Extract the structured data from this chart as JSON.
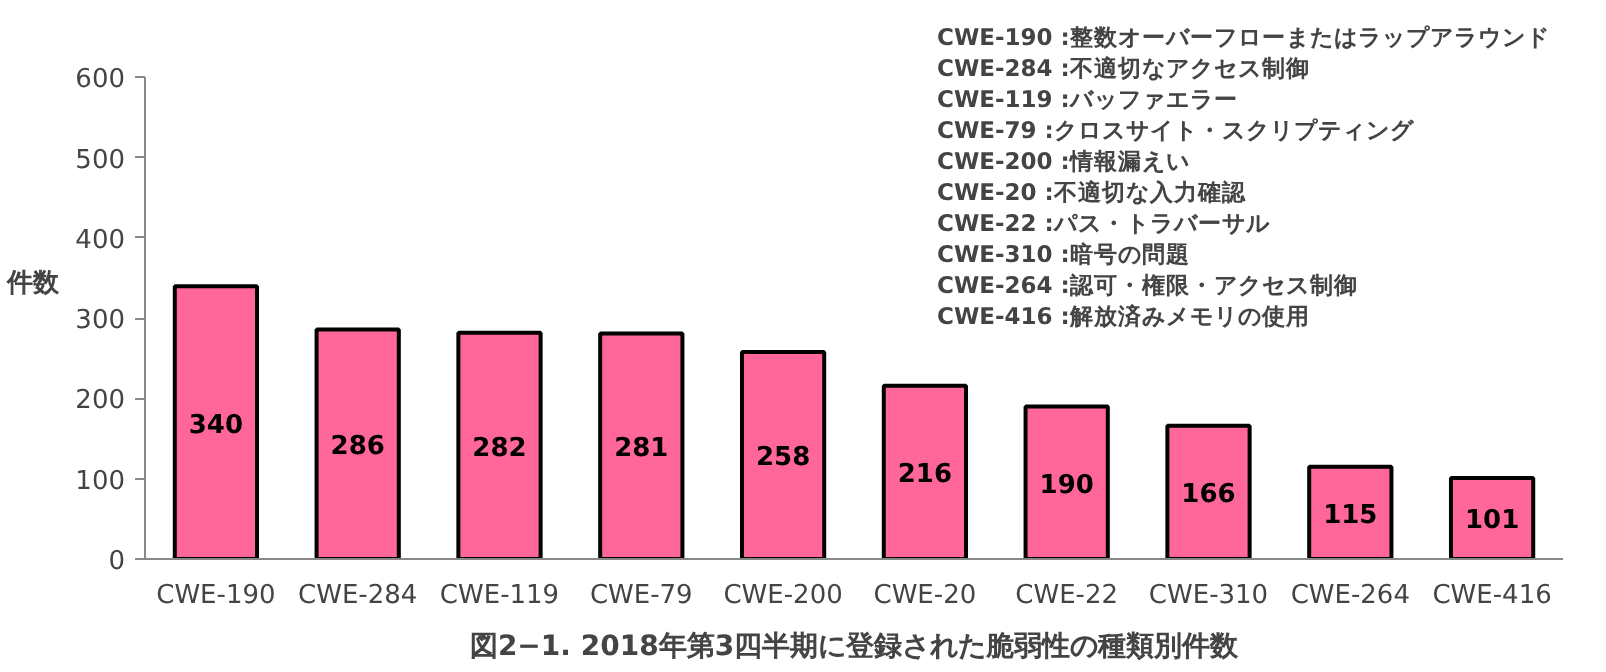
{
  "chart_data": {
    "type": "bar",
    "title": "図2−1. 2018年第3四半期に登録された脆弱性の種類別件数",
    "ylabel": "件数",
    "categories": [
      "CWE-190",
      "CWE-284",
      "CWE-119",
      "CWE-79",
      "CWE-200",
      "CWE-20",
      "CWE-22",
      "CWE-310",
      "CWE-264",
      "CWE-416"
    ],
    "values": [
      340,
      286,
      282,
      281,
      258,
      216,
      190,
      166,
      115,
      101
    ],
    "color": "#ff6699",
    "ylim": [
      0,
      600
    ],
    "yticks": [
      0,
      100,
      200,
      300,
      400,
      500,
      600
    ],
    "grid": false,
    "data_labels": true,
    "annotations": [
      "CWE-190 :整数オーバーフローまたはラップアラウンド",
      "CWE-284 :不適切なアクセス制御",
      "CWE-119 :バッファエラー",
      "CWE-79  :クロスサイト・スクリプティング",
      "CWE-200 :情報漏えい",
      "CWE-20 :不適切な入力確認",
      "CWE-22 :パス・トラバーサル",
      "CWE-310 :暗号の問題",
      "CWE-264 :認可・権限・アクセス制御",
      "CWE-416 :解放済みメモリの使用"
    ]
  }
}
